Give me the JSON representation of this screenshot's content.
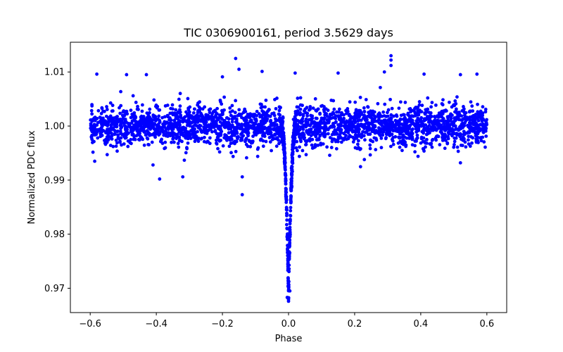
{
  "chart_data": {
    "type": "scatter",
    "title": "TIC 0306900161, period 3.5629 days",
    "xlabel": "Phase",
    "ylabel": "Normalized PDC flux",
    "xlim": [
      -0.66,
      0.66
    ],
    "ylim": [
      0.9655,
      1.0155
    ],
    "x_ticks": [
      -0.6,
      -0.4,
      -0.2,
      0.0,
      0.2,
      0.4,
      0.6
    ],
    "x_tick_labels": [
      "−0.6",
      "−0.4",
      "−0.2",
      "0.0",
      "0.2",
      "0.4",
      "0.6"
    ],
    "y_ticks": [
      0.97,
      0.98,
      0.99,
      1.0,
      1.01
    ],
    "y_tick_labels": [
      "0.97",
      "0.98",
      "0.99",
      "1.00",
      "1.01"
    ],
    "grid": false,
    "marker_color": "#0000ff",
    "series": [
      {
        "name": "PDC flux",
        "phase_range": [
          -0.6,
          0.6
        ],
        "baseline_flux": 1.0,
        "scatter_sigma": 0.0022,
        "transit_center": 0.0,
        "transit_depth": 0.031,
        "transit_half_width": 0.022,
        "notable_points": [
          {
            "x": -0.58,
            "y": 1.0096
          },
          {
            "x": -0.49,
            "y": 1.0095
          },
          {
            "x": -0.43,
            "y": 1.0095
          },
          {
            "x": -0.2,
            "y": 1.0091
          },
          {
            "x": -0.16,
            "y": 1.0125
          },
          {
            "x": -0.15,
            "y": 1.0105
          },
          {
            "x": -0.08,
            "y": 1.0101
          },
          {
            "x": 0.02,
            "y": 1.0098
          },
          {
            "x": 0.15,
            "y": 1.0098
          },
          {
            "x": 0.29,
            "y": 1.01
          },
          {
            "x": 0.31,
            "y": 1.013
          },
          {
            "x": 0.31,
            "y": 1.0122
          },
          {
            "x": 0.31,
            "y": 1.0112
          },
          {
            "x": 0.41,
            "y": 1.0096
          },
          {
            "x": 0.52,
            "y": 1.0095
          },
          {
            "x": 0.57,
            "y": 1.0096
          },
          {
            "x": -0.39,
            "y": 0.9902
          },
          {
            "x": -0.32,
            "y": 0.9906
          },
          {
            "x": -0.14,
            "y": 0.9873
          },
          {
            "x": -0.14,
            "y": 0.9906
          },
          {
            "x": -0.41,
            "y": 0.9928
          },
          {
            "x": 0.52,
            "y": 0.9932
          },
          {
            "x": 0.0,
            "y": 0.9676
          },
          {
            "x": -0.004,
            "y": 0.9683
          },
          {
            "x": 0.004,
            "y": 0.9695
          }
        ]
      }
    ]
  }
}
